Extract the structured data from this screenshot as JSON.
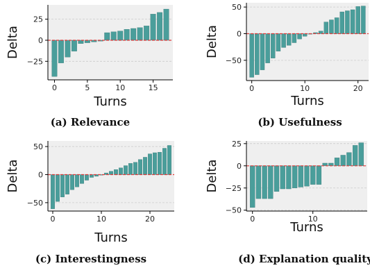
{
  "style": {
    "bar_color": "#4a9e9b",
    "bar_edge_color": "#2f6f6c",
    "plot_bg": "#efefef",
    "grid_color": "#cccccc",
    "zero_line_color": "#e03b3b"
  },
  "chart_data": [
    {
      "type": "bar",
      "caption": "(a) Relevance",
      "xlabel": "Turns",
      "ylabel": "Delta",
      "xlim": [
        -1,
        18
      ],
      "ylim": [
        -47,
        42
      ],
      "xticks": [
        0,
        5,
        10,
        15
      ],
      "yticks": [
        -25,
        0,
        25
      ],
      "ytick_labels": [
        "−25",
        "0",
        "25"
      ],
      "grid": true,
      "x": [
        0,
        1,
        2,
        3,
        4,
        5,
        6,
        7,
        8,
        9,
        10,
        11,
        12,
        13,
        14,
        15,
        16,
        17
      ],
      "values": [
        -43,
        -27,
        -20,
        -13,
        -4,
        -3,
        -2,
        -1,
        9,
        10,
        11,
        13,
        14,
        15,
        17,
        31,
        33,
        37
      ]
    },
    {
      "type": "bar",
      "caption": "(b) Usefulness",
      "xlabel": "Turns",
      "ylabel": "Delta",
      "xlim": [
        -1,
        22
      ],
      "ylim": [
        -88,
        58
      ],
      "xticks": [
        0,
        10,
        20
      ],
      "yticks": [
        -50,
        0,
        50
      ],
      "ytick_labels": [
        "−50",
        "0",
        "50"
      ],
      "grid": true,
      "x": [
        0,
        1,
        2,
        3,
        4,
        5,
        6,
        7,
        8,
        9,
        10,
        11,
        12,
        13,
        14,
        15,
        16,
        17,
        18,
        19,
        20,
        21
      ],
      "values": [
        -82,
        -77,
        -68,
        -55,
        -46,
        -33,
        -26,
        -22,
        -17,
        -10,
        -5,
        -1,
        2,
        5,
        22,
        26,
        30,
        41,
        43,
        45,
        51,
        52
      ]
    },
    {
      "type": "bar",
      "caption": "(c) Interestingness",
      "xlabel": "Turns",
      "ylabel": "Delta",
      "xlim": [
        -1,
        25
      ],
      "ylim": [
        -65,
        60
      ],
      "xticks": [
        0,
        10,
        20
      ],
      "yticks": [
        -50,
        0,
        50
      ],
      "ytick_labels": [
        "−50",
        "0",
        "50"
      ],
      "grid": true,
      "x": [
        0,
        1,
        2,
        3,
        4,
        5,
        6,
        7,
        8,
        9,
        10,
        11,
        12,
        13,
        14,
        15,
        16,
        17,
        18,
        19,
        20,
        21,
        22,
        23,
        24
      ],
      "values": [
        -61,
        -48,
        -40,
        -35,
        -27,
        -22,
        -16,
        -10,
        -5,
        -3,
        -1,
        3,
        6,
        9,
        12,
        16,
        20,
        22,
        27,
        31,
        37,
        39,
        40,
        47,
        52
      ]
    },
    {
      "type": "bar",
      "caption": "(d) Explanation quality",
      "xlabel": "Turns",
      "ylabel": "Delta",
      "xlim": [
        -1,
        19
      ],
      "ylim": [
        -51,
        28
      ],
      "xticks": [
        0,
        10
      ],
      "yticks": [
        -50,
        -25,
        0,
        25
      ],
      "ytick_labels": [
        "−50",
        "−25",
        "0",
        "25"
      ],
      "grid": true,
      "x": [
        0,
        1,
        2,
        3,
        4,
        5,
        6,
        7,
        8,
        9,
        10,
        11,
        12,
        13,
        14,
        15,
        16,
        17,
        18
      ],
      "values": [
        -47,
        -37,
        -37,
        -37,
        -29,
        -26,
        -26,
        -25,
        -24,
        -23,
        -21,
        -21,
        3,
        3,
        9,
        12,
        15,
        23,
        26
      ]
    }
  ]
}
